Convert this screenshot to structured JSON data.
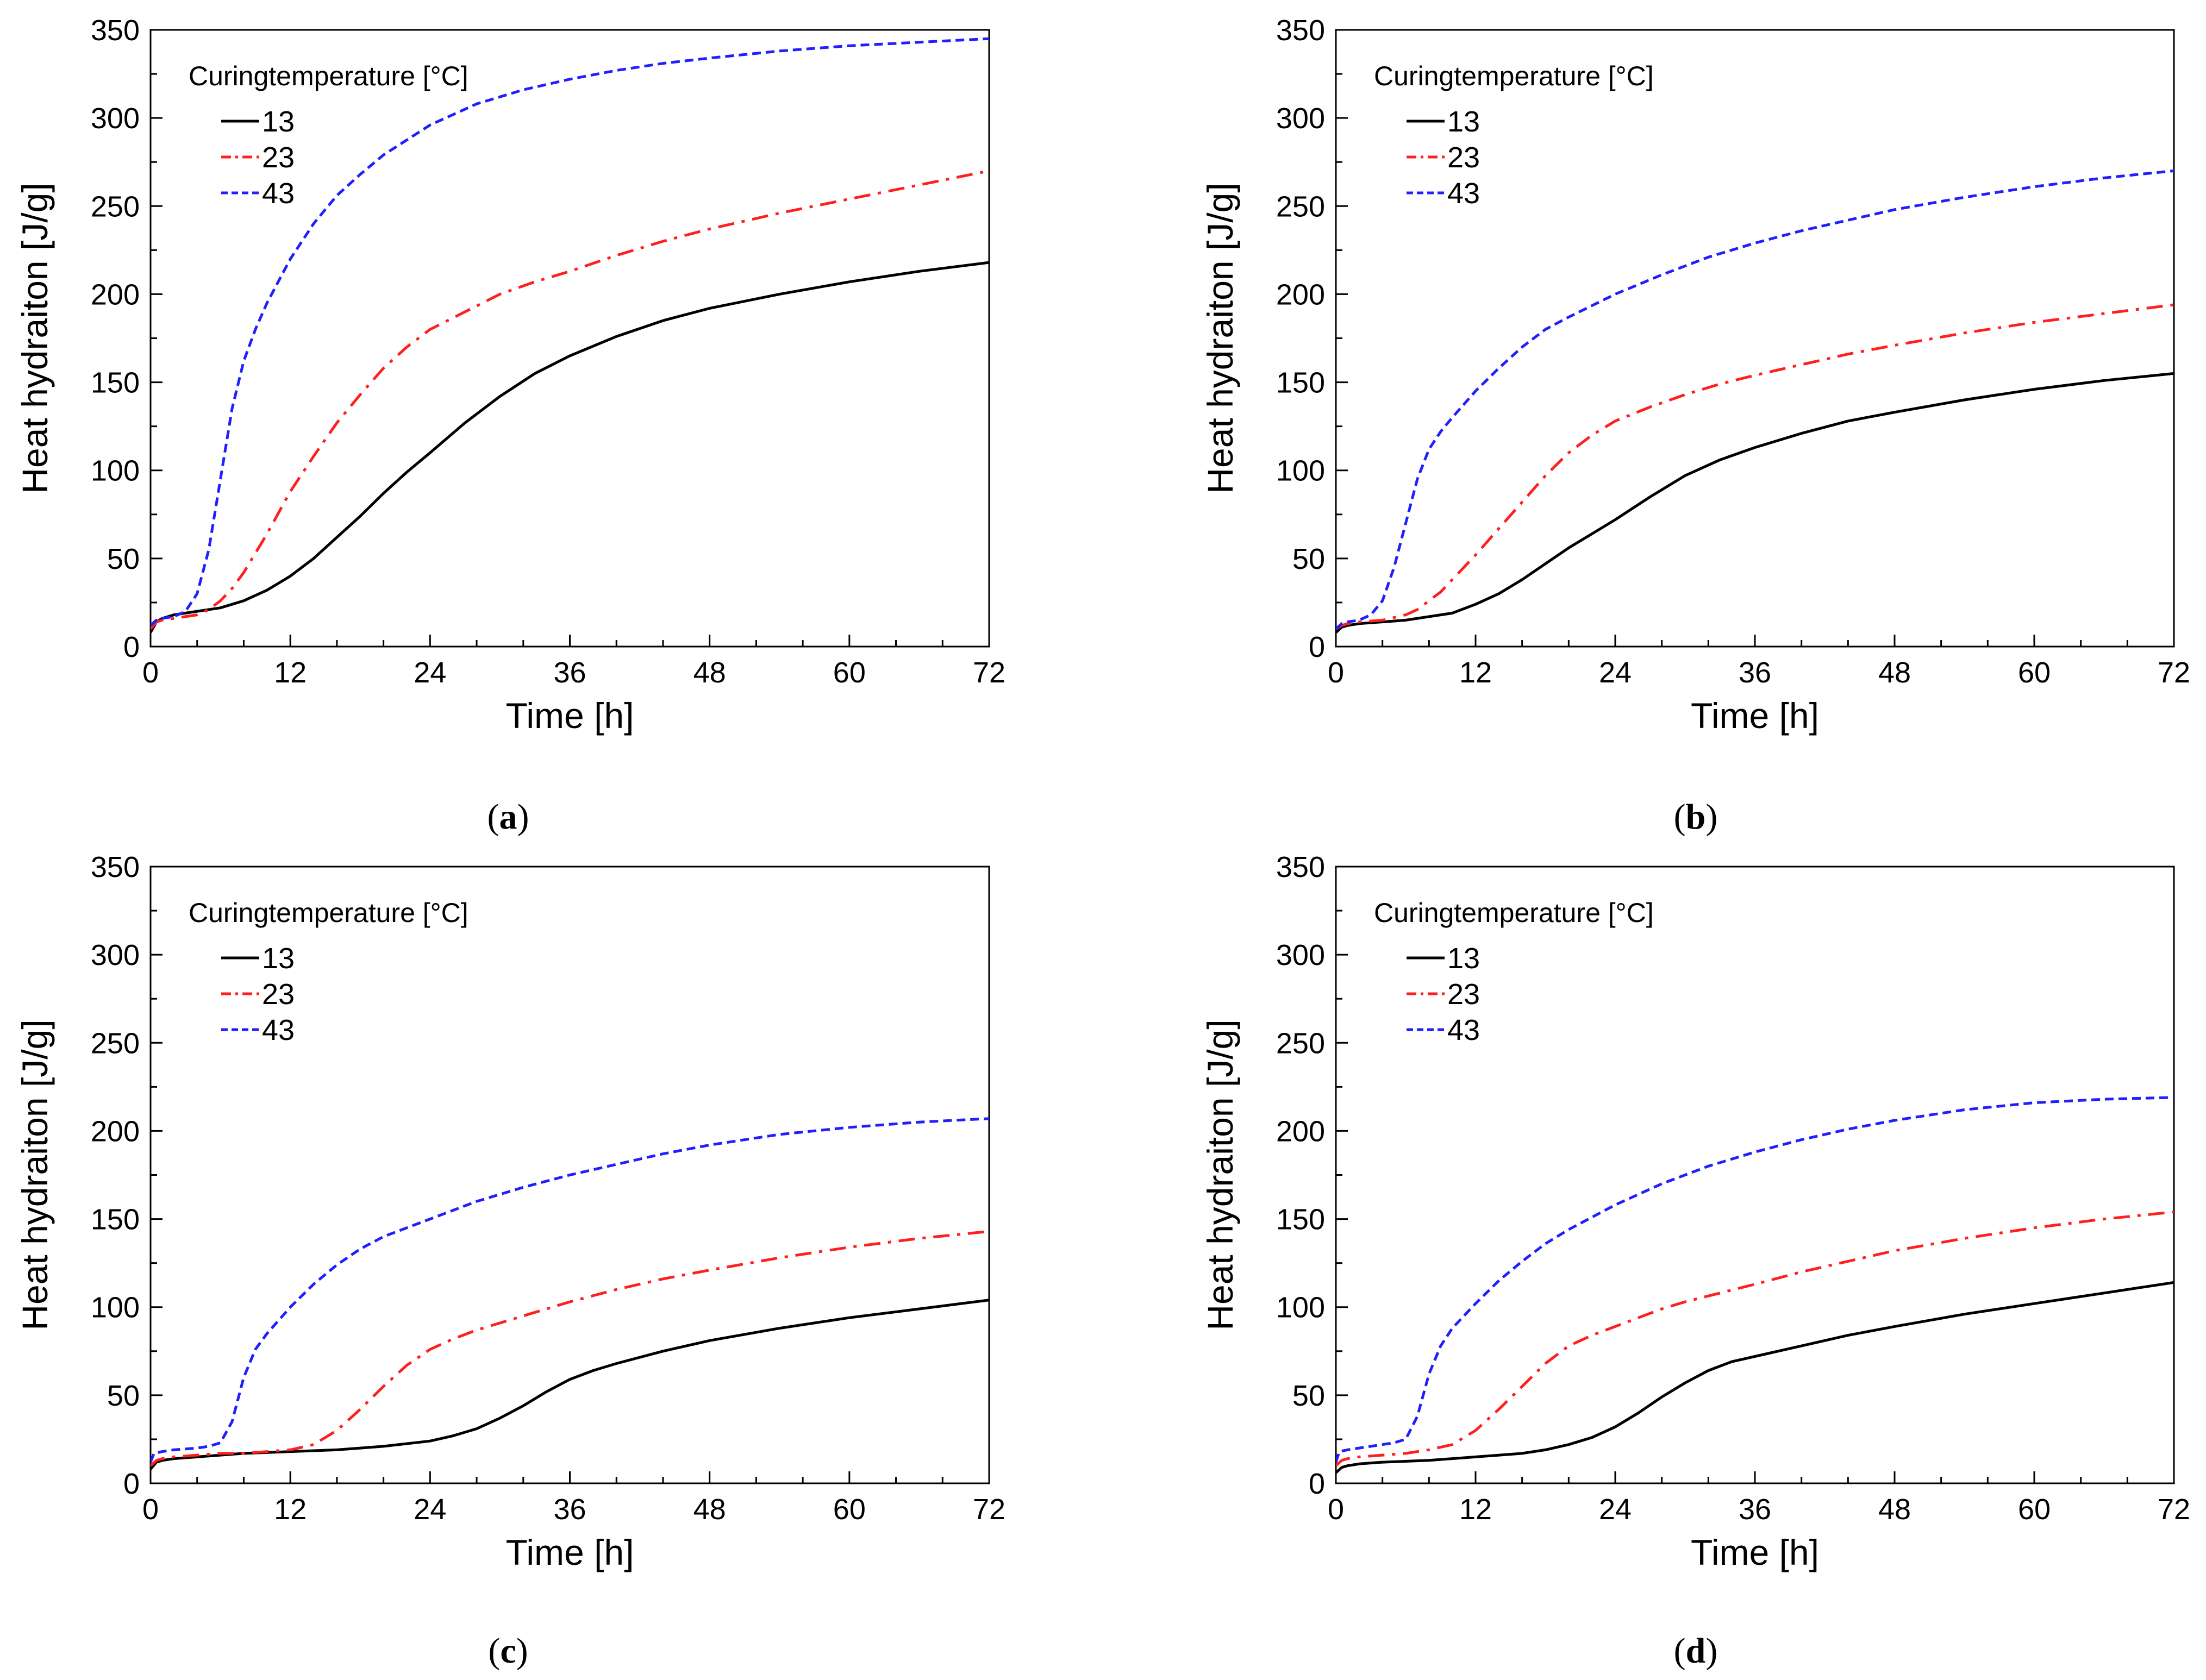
{
  "figure": {
    "x_label": "Time [h]",
    "y_label": "Heat hydraiton [J/g]",
    "legend_title": "Curingtemperature [°C]",
    "panel_labels": [
      "a",
      "b",
      "c",
      "d"
    ]
  },
  "chart_data": [
    {
      "panel": "a",
      "type": "line",
      "title": "",
      "xlabel": "Time [h]",
      "ylabel": "Heat hydraiton [J/g]",
      "xlim": [
        0,
        72
      ],
      "ylim": [
        0,
        350
      ],
      "xticks": [
        0,
        12,
        24,
        36,
        48,
        60,
        72
      ],
      "yticks": [
        0,
        50,
        100,
        150,
        200,
        250,
        300,
        350
      ],
      "legend_title": "Curingtemperature [°C]",
      "legend_position": "top-left",
      "series": [
        {
          "name": "13",
          "color": "#000000",
          "style": "solid",
          "x": [
            0,
            0.5,
            1,
            2,
            4,
            6,
            8,
            10,
            12,
            14,
            16,
            18,
            20,
            22,
            24,
            27,
            30,
            33,
            36,
            40,
            44,
            48,
            54,
            60,
            66,
            72
          ],
          "y": [
            8,
            14,
            16,
            18,
            20,
            22,
            26,
            32,
            40,
            50,
            62,
            74,
            87,
            99,
            110,
            127,
            142,
            155,
            165,
            176,
            185,
            192,
            200,
            207,
            213,
            218
          ]
        },
        {
          "name": "23",
          "color": "#ff1f1f",
          "style": "dashdot",
          "x": [
            0,
            0.5,
            1,
            2,
            3,
            4,
            5,
            6,
            7,
            8,
            9,
            10,
            11,
            12,
            14,
            16,
            18,
            20,
            22,
            24,
            27,
            30,
            33,
            36,
            40,
            44,
            48,
            54,
            60,
            66,
            72
          ],
          "y": [
            10,
            14,
            15,
            16,
            17,
            18,
            21,
            26,
            33,
            42,
            53,
            64,
            76,
            88,
            108,
            127,
            143,
            158,
            170,
            180,
            190,
            200,
            207,
            213,
            222,
            230,
            237,
            246,
            254,
            262,
            270
          ]
        },
        {
          "name": "43",
          "color": "#1f1fff",
          "style": "dashed",
          "x": [
            0,
            0.5,
            1,
            2,
            3,
            4,
            5,
            6,
            7,
            8,
            9,
            10,
            12,
            14,
            16,
            18,
            20,
            24,
            28,
            32,
            36,
            40,
            44,
            48,
            54,
            60,
            66,
            72
          ],
          "y": [
            12,
            15,
            16,
            17,
            20,
            30,
            55,
            95,
            135,
            162,
            180,
            195,
            220,
            240,
            256,
            268,
            279,
            296,
            308,
            316,
            322,
            327,
            331,
            334,
            338,
            341,
            343,
            345
          ]
        }
      ]
    },
    {
      "panel": "b",
      "type": "line",
      "title": "",
      "xlabel": "Time [h]",
      "ylabel": "Heat hydraiton [J/g]",
      "xlim": [
        0,
        72
      ],
      "ylim": [
        0,
        350
      ],
      "xticks": [
        0,
        12,
        24,
        36,
        48,
        60,
        72
      ],
      "yticks": [
        0,
        50,
        100,
        150,
        200,
        250,
        300,
        350
      ],
      "legend_title": "Curingtemperature [°C]",
      "legend_position": "top-left",
      "series": [
        {
          "name": "13",
          "color": "#000000",
          "style": "solid",
          "x": [
            0,
            0.5,
            1,
            2,
            4,
            6,
            8,
            10,
            12,
            14,
            16,
            18,
            20,
            22,
            24,
            27,
            30,
            33,
            36,
            40,
            44,
            48,
            54,
            60,
            66,
            72
          ],
          "y": [
            8,
            11,
            12,
            13,
            14,
            15,
            17,
            19,
            24,
            30,
            38,
            47,
            56,
            64,
            72,
            85,
            97,
            106,
            113,
            121,
            128,
            133,
            140,
            146,
            151,
            155
          ]
        },
        {
          "name": "23",
          "color": "#ff1f1f",
          "style": "dashdot",
          "x": [
            0,
            0.5,
            1,
            2,
            4,
            6,
            7,
            8,
            9,
            10,
            12,
            14,
            16,
            18,
            20,
            22,
            24,
            27,
            30,
            33,
            36,
            40,
            44,
            48,
            54,
            60,
            66,
            72
          ],
          "y": [
            10,
            12,
            13,
            14,
            15,
            18,
            21,
            26,
            31,
            38,
            52,
            67,
            82,
            97,
            110,
            120,
            128,
            136,
            143,
            149,
            154,
            160,
            166,
            171,
            178,
            184,
            189,
            194
          ]
        },
        {
          "name": "43",
          "color": "#1f1fff",
          "style": "dashed",
          "x": [
            0,
            0.5,
            1,
            2,
            3,
            4,
            5,
            6,
            7,
            8,
            9,
            10,
            12,
            14,
            16,
            18,
            20,
            24,
            28,
            32,
            36,
            40,
            44,
            48,
            54,
            60,
            66,
            72
          ],
          "y": [
            10,
            13,
            14,
            15,
            18,
            26,
            45,
            70,
            95,
            112,
            122,
            130,
            145,
            158,
            170,
            180,
            187,
            200,
            211,
            221,
            229,
            236,
            242,
            248,
            255,
            261,
            266,
            270
          ]
        }
      ]
    },
    {
      "panel": "c",
      "type": "line",
      "title": "",
      "xlabel": "Time [h]",
      "ylabel": "Heat hydraiton [J/g]",
      "xlim": [
        0,
        72
      ],
      "ylim": [
        0,
        350
      ],
      "xticks": [
        0,
        12,
        24,
        36,
        48,
        60,
        72
      ],
      "yticks": [
        0,
        50,
        100,
        150,
        200,
        250,
        300,
        350
      ],
      "legend_title": "Curingtemperature [°C]",
      "legend_position": "top-left",
      "series": [
        {
          "name": "13",
          "color": "#000000",
          "style": "solid",
          "x": [
            0,
            0.5,
            1,
            2,
            4,
            6,
            8,
            12,
            16,
            20,
            24,
            26,
            28,
            30,
            32,
            34,
            36,
            38,
            40,
            44,
            48,
            54,
            60,
            66,
            72
          ],
          "y": [
            8,
            12,
            13,
            14,
            15,
            16,
            17,
            18,
            19,
            21,
            24,
            27,
            31,
            37,
            44,
            52,
            59,
            64,
            68,
            75,
            81,
            88,
            94,
            99,
            104
          ]
        },
        {
          "name": "23",
          "color": "#ff1f1f",
          "style": "dashdot",
          "x": [
            0,
            0.5,
            1,
            2,
            4,
            6,
            8,
            10,
            12,
            14,
            16,
            18,
            20,
            22,
            24,
            26,
            28,
            30,
            33,
            36,
            40,
            44,
            48,
            54,
            60,
            66,
            72
          ],
          "y": [
            10,
            13,
            14,
            15,
            16,
            17,
            17,
            18,
            19,
            22,
            30,
            42,
            55,
            67,
            76,
            82,
            87,
            91,
            97,
            103,
            110,
            116,
            121,
            128,
            134,
            139,
            143
          ]
        },
        {
          "name": "43",
          "color": "#1f1fff",
          "style": "dashed",
          "x": [
            0,
            0.3,
            1,
            2,
            4,
            5,
            6,
            7,
            8,
            9,
            10,
            12,
            14,
            16,
            18,
            20,
            24,
            28,
            32,
            36,
            40,
            44,
            48,
            54,
            60,
            66,
            72
          ],
          "y": [
            12,
            17,
            18,
            19,
            20,
            21,
            23,
            35,
            60,
            76,
            85,
            100,
            113,
            124,
            133,
            140,
            150,
            160,
            168,
            175,
            181,
            187,
            192,
            198,
            202,
            205,
            207
          ]
        }
      ]
    },
    {
      "panel": "d",
      "type": "line",
      "title": "",
      "xlabel": "Time [h]",
      "ylabel": "Heat hydraiton [J/g]",
      "xlim": [
        0,
        72
      ],
      "ylim": [
        0,
        350
      ],
      "xticks": [
        0,
        12,
        24,
        36,
        48,
        60,
        72
      ],
      "yticks": [
        0,
        50,
        100,
        150,
        200,
        250,
        300,
        350
      ],
      "legend_title": "Curingtemperature [°C]",
      "legend_position": "top-left",
      "series": [
        {
          "name": "13",
          "color": "#000000",
          "style": "solid",
          "x": [
            0,
            0.5,
            1,
            2,
            4,
            8,
            12,
            16,
            18,
            20,
            22,
            24,
            26,
            28,
            30,
            32,
            34,
            36,
            40,
            44,
            48,
            54,
            60,
            66,
            72
          ],
          "y": [
            6,
            9,
            10,
            11,
            12,
            13,
            15,
            17,
            19,
            22,
            26,
            32,
            40,
            49,
            57,
            64,
            69,
            72,
            78,
            84,
            89,
            96,
            102,
            108,
            114
          ]
        },
        {
          "name": "23",
          "color": "#ff1f1f",
          "style": "dashdot",
          "x": [
            0,
            0.5,
            1,
            2,
            4,
            6,
            8,
            10,
            12,
            14,
            16,
            18,
            20,
            22,
            24,
            26,
            28,
            30,
            33,
            36,
            40,
            44,
            48,
            54,
            60,
            66,
            72
          ],
          "y": [
            10,
            13,
            14,
            15,
            16,
            17,
            19,
            22,
            30,
            42,
            55,
            68,
            78,
            84,
            89,
            94,
            99,
            103,
            108,
            113,
            120,
            126,
            132,
            139,
            145,
            150,
            154
          ]
        },
        {
          "name": "43",
          "color": "#1f1fff",
          "style": "dashed",
          "x": [
            0,
            0.3,
            1,
            2,
            4,
            5,
            6,
            7,
            8,
            9,
            10,
            12,
            14,
            16,
            18,
            20,
            24,
            28,
            32,
            36,
            40,
            44,
            48,
            54,
            60,
            66,
            72
          ],
          "y": [
            12,
            18,
            19,
            20,
            22,
            23,
            25,
            38,
            62,
            78,
            88,
            102,
            115,
            126,
            136,
            144,
            158,
            170,
            180,
            188,
            195,
            201,
            206,
            212,
            216,
            218,
            219
          ]
        }
      ]
    }
  ]
}
